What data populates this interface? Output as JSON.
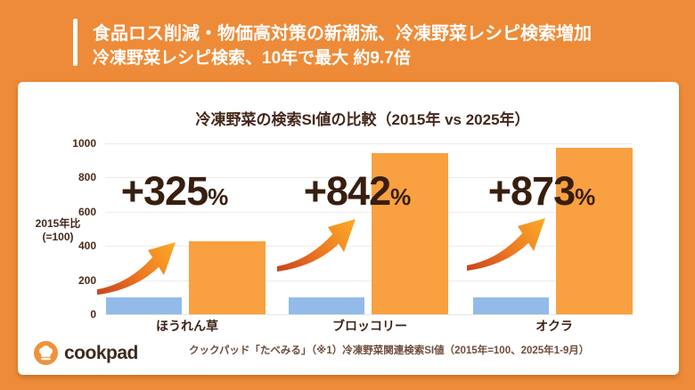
{
  "header": {
    "line1": "食品ロス削減・物価高対策の新潮流、冷凍野菜レシピ検索増加",
    "line2": "冷凍野菜レシピ検索、10年で最大 約9.7倍"
  },
  "chart_data": {
    "type": "bar",
    "title": "冷凍野菜の検索SI値の比較（2015年 vs 2025年）",
    "ylabel_lines": [
      "2015年比",
      "(=100)"
    ],
    "ylim": [
      0,
      1000
    ],
    "yticks": [
      0,
      200,
      400,
      600,
      800,
      1000
    ],
    "grid": true,
    "legend_position": "none",
    "categories": [
      "ほうれん草",
      "ブロッコリー",
      "オクラ"
    ],
    "series": [
      {
        "name": "2015年",
        "color": "#92BBE9",
        "values": [
          100,
          100,
          100
        ]
      },
      {
        "name": "2025年",
        "color": "#F9A041",
        "values": [
          425,
          942,
          973
        ]
      }
    ],
    "growth_labels": [
      "+325",
      "+842",
      "+873"
    ],
    "percent_suffix": "%"
  },
  "footer": {
    "logo_text": "cookpad",
    "source": "クックパッド「たべみる」（※1）冷凍野菜関連検索SI値（2015年=100、2025年1-9月）"
  },
  "colors": {
    "background_orange": "#EE8B38",
    "bar_orange": "#F9A041",
    "bar_blue": "#92BBE9",
    "dark_text": "#3E2416",
    "growth_text": "#381E0F",
    "source_text": "#6F4C3C",
    "logo_circle": "#F0923B",
    "arrow_gradient": [
      "#C9401F",
      "#ED7A22",
      "#FCAE27"
    ]
  }
}
